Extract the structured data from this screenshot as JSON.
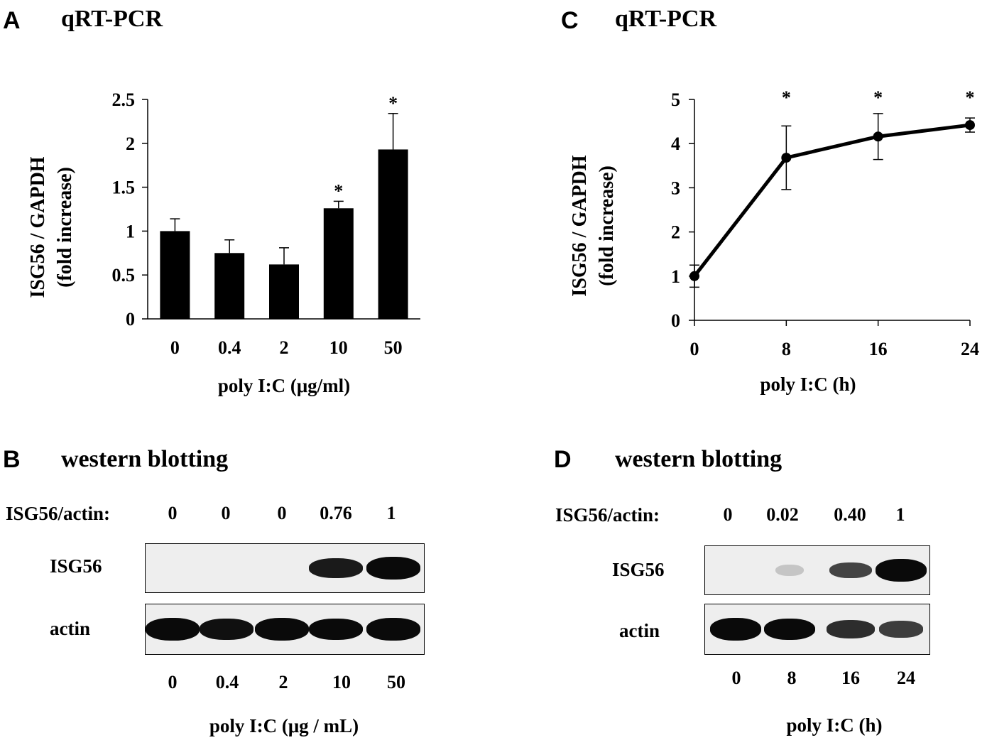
{
  "panel_a": {
    "letter": "A",
    "title": "qRT-PCR"
  },
  "panel_b": {
    "letter": "B",
    "title": "western blotting",
    "ratio_label": "ISG56/actin:",
    "ratios": [
      "0",
      "0",
      "0",
      "0.76",
      "1"
    ],
    "row_labels": [
      "ISG56",
      "actin"
    ],
    "lanes": [
      "0",
      "0.4",
      "2",
      "10",
      "50"
    ],
    "xlabel": "poly I:C (μg / mL)",
    "isg56_intensity": [
      0,
      0,
      0,
      0.76,
      1
    ],
    "actin_intensity": [
      1,
      0.85,
      1,
      0.9,
      1
    ]
  },
  "panel_c": {
    "letter": "C",
    "title": "qRT-PCR"
  },
  "panel_d": {
    "letter": "D",
    "title": "western blotting",
    "ratio_label": "ISG56/actin:",
    "ratios": [
      "0",
      "0.02",
      "0.40",
      "1"
    ],
    "row_labels": [
      "ISG56",
      "actin"
    ],
    "lanes": [
      "0",
      "8",
      "16",
      "24"
    ],
    "xlabel": "poly I:C (h)",
    "isg56_intensity": [
      0,
      0.02,
      0.4,
      1
    ],
    "actin_intensity": [
      1,
      0.9,
      0.6,
      0.45
    ]
  },
  "chart_data": [
    {
      "type": "bar",
      "categories": [
        "0",
        "0.4",
        "2",
        "10",
        "50"
      ],
      "values": [
        1.0,
        0.75,
        0.62,
        1.26,
        1.93
      ],
      "errors": [
        0.14,
        0.15,
        0.19,
        0.08,
        0.41
      ],
      "significant": [
        false,
        false,
        false,
        true,
        true
      ],
      "marker": "*",
      "title": "qRT-PCR",
      "xlabel": "poly I:C (μg/ml)",
      "ylabel": "ISG56 / GAPDH",
      "ylabel2": "(fold increase)",
      "ylim": [
        0,
        2.5
      ],
      "yticks": [
        "0",
        "0.5",
        "1",
        "1.5",
        "2",
        "2.5"
      ],
      "grid": false
    },
    {
      "type": "line",
      "x": [
        0,
        8,
        16,
        24
      ],
      "xticks": [
        "0",
        "8",
        "16",
        "24"
      ],
      "values": [
        1.0,
        3.68,
        4.16,
        4.42
      ],
      "errors": [
        0.25,
        0.72,
        0.52,
        0.16
      ],
      "significant": [
        false,
        true,
        true,
        true
      ],
      "marker": "*",
      "title": "qRT-PCR",
      "xlabel": "poly I:C (h)",
      "ylabel": "ISG56 / GAPDH",
      "ylabel2": "(fold increase)",
      "ylim": [
        0,
        5
      ],
      "yticks": [
        "0",
        "1",
        "2",
        "3",
        "4",
        "5"
      ],
      "grid": false
    }
  ]
}
